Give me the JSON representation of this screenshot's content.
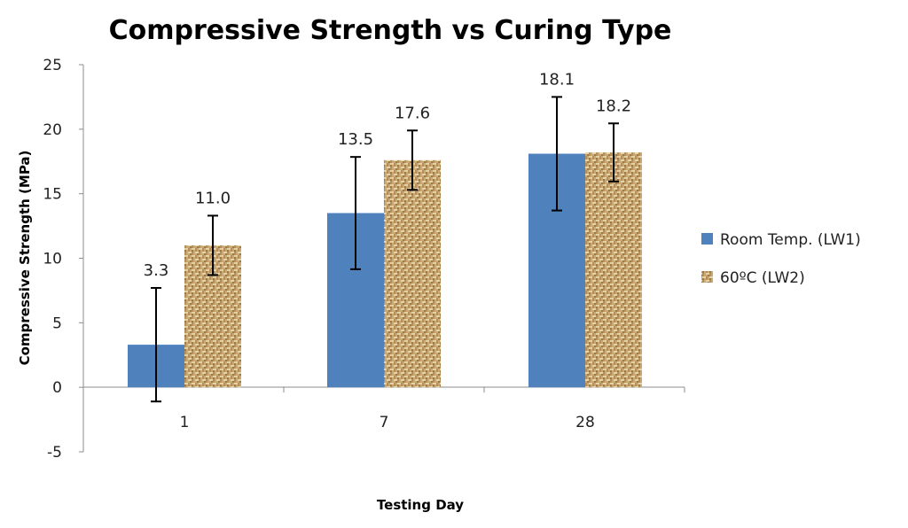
{
  "chart_data": {
    "type": "bar",
    "title": "Compressive Strength vs Curing Type",
    "xlabel": "Testing Day",
    "ylabel": "Compressive Strength (MPa)",
    "categories": [
      "1",
      "7",
      "28"
    ],
    "ylim": [
      -5,
      25
    ],
    "yticks": [
      -5,
      0,
      5,
      10,
      15,
      20,
      25
    ],
    "grid": false,
    "legend_position": "right",
    "series": [
      {
        "name": "Room Temp. (LW1)",
        "values": [
          3.3,
          13.5,
          18.1
        ],
        "labels": [
          "3.3",
          "13.5",
          "18.1"
        ],
        "errors": [
          4.4,
          4.35,
          4.4
        ],
        "color": "#4f81bd",
        "fill": "solid"
      },
      {
        "name": "60ºC (LW2)",
        "values": [
          11.0,
          17.6,
          18.2
        ],
        "labels": [
          "11.0",
          "17.6",
          "18.2"
        ],
        "errors": [
          2.3,
          2.3,
          2.25
        ],
        "color": "#c8a572",
        "fill": "burlap-texture"
      }
    ]
  }
}
